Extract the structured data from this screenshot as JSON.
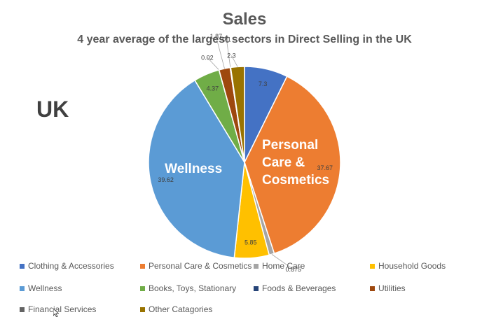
{
  "chart_data": {
    "type": "pie",
    "title": "Sales",
    "subtitle": "4 year average of the largest sectors in Direct Selling in the UK",
    "region_label": "UK",
    "categories": [
      "Clothing & Accessories",
      "Personal Care & Cosmetics",
      "Home Care",
      "Household Goods",
      "Wellness",
      "Books, Toys, Stationary",
      "Foods & Beverages",
      "Utilities",
      "Financial Services",
      "Other Catagories"
    ],
    "values": [
      7.3,
      37.67,
      0.875,
      5.85,
      39.62,
      4.37,
      0.02,
      1.87,
      0.1,
      2.3
    ],
    "value_labels": [
      "7.3",
      "37.67",
      "0.875",
      "5.85",
      "39.62",
      "4.37",
      "0.02",
      "1.87",
      "0.1",
      "2.3"
    ],
    "colors": [
      "#4472C4",
      "#ED7D31",
      "#A5A5A5",
      "#FFC000",
      "#5B9BD5",
      "#70AD47",
      "#264478",
      "#9E480E",
      "#636363",
      "#997300"
    ],
    "slice_annotations": [
      {
        "category": "Personal Care & Cosmetics",
        "text": "Personal Care & Cosmetics"
      },
      {
        "category": "Wellness",
        "text": "Wellness"
      }
    ],
    "legend_position": "bottom"
  }
}
